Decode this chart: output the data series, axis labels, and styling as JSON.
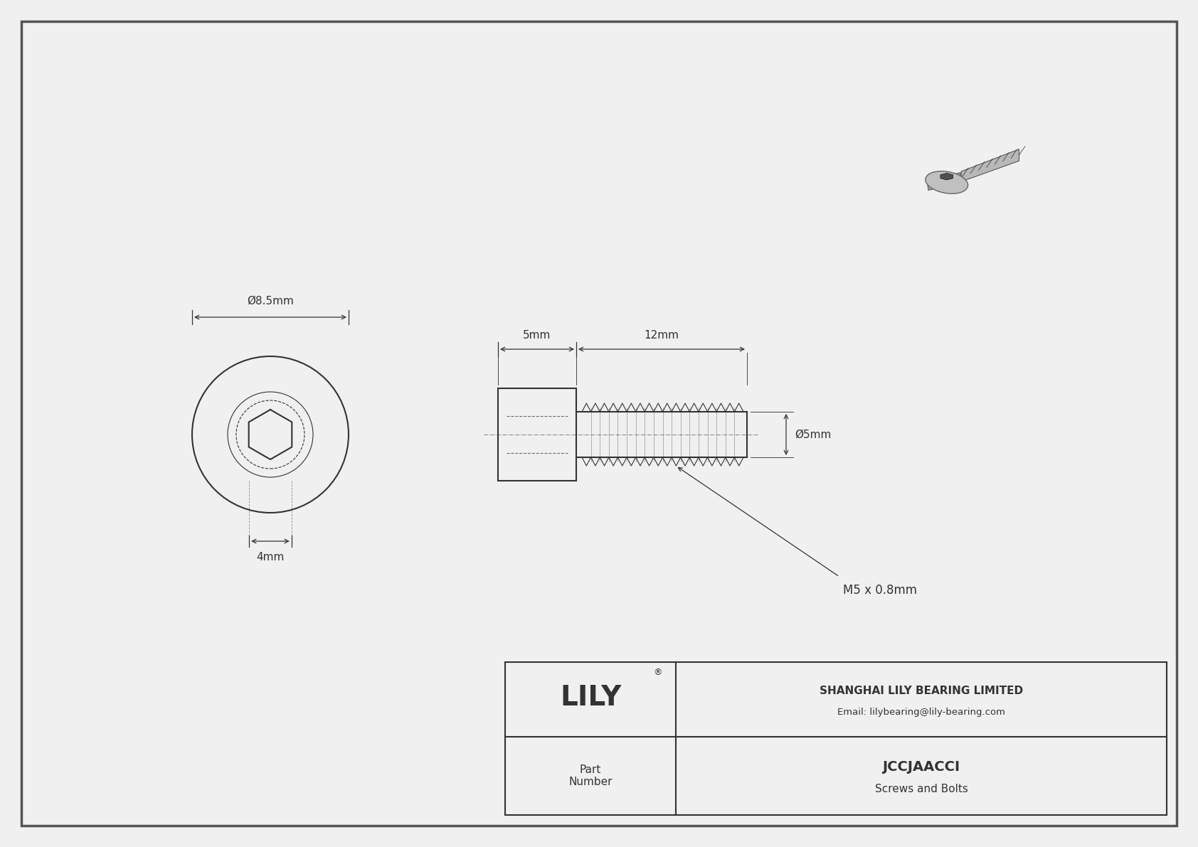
{
  "bg_color": "#f0f0f0",
  "line_color": "#333333",
  "drawing_bg": "#ffffff",
  "border_color": "#555555",
  "title_company": "SHANGHAI LILY BEARING LIMITED",
  "title_email": "Email: lilybearing@lily-bearing.com",
  "part_number": "JCCJAACCI",
  "part_category": "Screws and Bolts",
  "part_label": "Part\nNumber",
  "lily_text": "LILY",
  "dim_head_diameter": "Ø8.5mm",
  "dim_socket_diameter": "4mm",
  "dim_head_length": "5mm",
  "dim_shaft_length": "12mm",
  "dim_shaft_diameter": "Ø5mm",
  "dim_thread": "M5 x 0.8mm",
  "drawing_color": "#444444",
  "dim_line_color": "#333333"
}
